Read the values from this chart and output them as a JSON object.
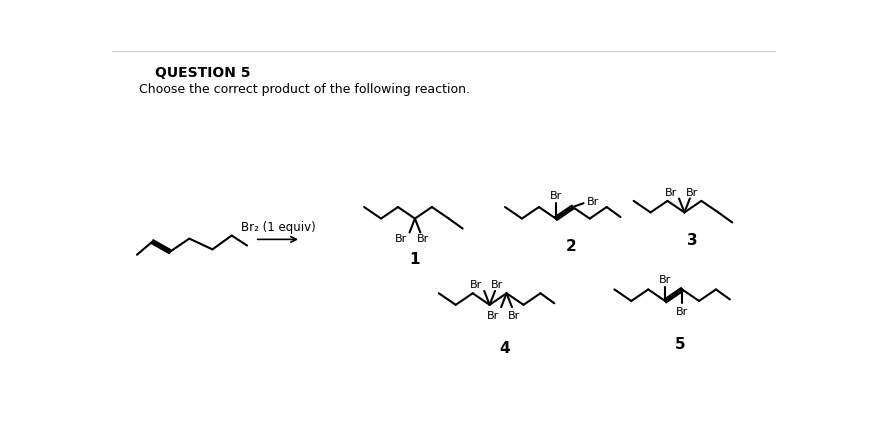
{
  "title": "QUESTION 5",
  "subtitle": "Choose the correct product of the following reaction.",
  "fig_bg": "#ffffff",
  "line_color": "#000000",
  "lw": 1.5,
  "reagent": "Br₂ (1 equiv)",
  "labels": [
    "1",
    "2",
    "3",
    "4",
    "5"
  ]
}
